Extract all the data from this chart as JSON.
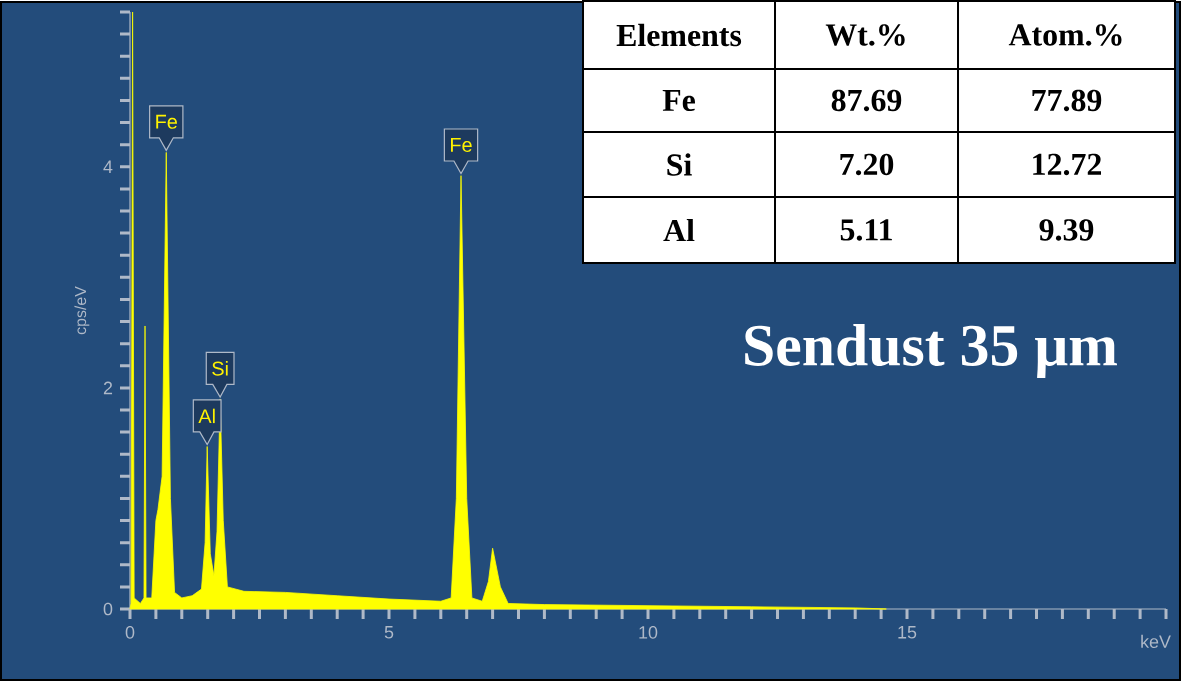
{
  "chart_data": [
    {
      "type": "area",
      "ylabel": "cps/eV",
      "xlabel": "keV",
      "xlim": [
        0,
        20
      ],
      "ylim": [
        0,
        5.4
      ],
      "xticks": [
        0,
        {
          "value": 0.5,
          "label": null
        },
        {
          "value": 1,
          "label": null
        },
        {
          "value": 1.5,
          "label": null
        },
        {
          "value": 2,
          "label": null
        },
        {
          "value": 2.5,
          "label": null
        },
        {
          "value": 3,
          "label": null
        },
        {
          "value": 3.5,
          "label": null
        },
        {
          "value": 4,
          "label": null
        },
        {
          "value": 4.5,
          "label": null
        },
        5,
        {
          "value": 5.5,
          "label": null
        },
        {
          "value": 6,
          "label": null
        },
        {
          "value": 6.5,
          "label": null
        },
        {
          "value": 7,
          "label": null
        },
        {
          "value": 7.5,
          "label": null
        },
        {
          "value": 8,
          "label": null
        },
        {
          "value": 8.5,
          "label": null
        },
        {
          "value": 9,
          "label": null
        },
        {
          "value": 9.5,
          "label": null
        },
        10,
        {
          "value": 10.5,
          "label": null
        },
        {
          "value": 11,
          "label": null
        },
        {
          "value": 11.5,
          "label": null
        },
        {
          "value": 12,
          "label": null
        },
        {
          "value": 12.5,
          "label": null
        },
        {
          "value": 13,
          "label": null
        },
        {
          "value": 13.5,
          "label": null
        },
        {
          "value": 14,
          "label": null
        },
        {
          "value": 14.5,
          "label": null
        },
        15,
        {
          "value": 15.5,
          "label": null
        },
        {
          "value": 16,
          "label": null
        },
        {
          "value": 16.5,
          "label": null
        },
        {
          "value": 17,
          "label": null
        },
        {
          "value": 17.5,
          "label": null
        },
        {
          "value": 18,
          "label": null
        },
        {
          "value": 18.5,
          "label": null
        },
        {
          "value": 19,
          "label": null
        },
        {
          "value": 19.5,
          "label": null
        },
        {
          "value": 20,
          "label": null
        }
      ],
      "yticks": [
        0,
        {
          "value": 0.2,
          "label": null
        },
        {
          "value": 0.4,
          "label": null
        },
        {
          "value": 0.6,
          "label": null
        },
        {
          "value": 0.8,
          "label": null
        },
        {
          "value": 1,
          "label": null
        },
        {
          "value": 1.2,
          "label": null
        },
        {
          "value": 1.4,
          "label": null
        },
        {
          "value": 1.6,
          "label": null
        },
        {
          "value": 1.8,
          "label": null
        },
        2,
        {
          "value": 2.2,
          "label": null
        },
        {
          "value": 2.4,
          "label": null
        },
        {
          "value": 2.6,
          "label": null
        },
        {
          "value": 2.8,
          "label": null
        },
        {
          "value": 3,
          "label": null
        },
        {
          "value": 3.2,
          "label": null
        },
        {
          "value": 3.4,
          "label": null
        },
        {
          "value": 3.6,
          "label": null
        },
        {
          "value": 3.8,
          "label": null
        },
        4,
        {
          "value": 4.2,
          "label": null
        },
        {
          "value": 4.4,
          "label": null
        },
        {
          "value": 4.6,
          "label": null
        },
        {
          "value": 4.8,
          "label": null
        },
        {
          "value": 5,
          "label": null
        },
        {
          "value": 5.2,
          "label": null
        },
        {
          "value": 5.4,
          "label": null
        }
      ],
      "series": [
        {
          "color": "#ffff00",
          "x": [
            0,
            0.02,
            0.05,
            0.08,
            0.2,
            0.27,
            0.29,
            0.31,
            0.42,
            0.5,
            0.54,
            0.62,
            0.7,
            0.78,
            0.86,
            1.0,
            1.2,
            1.38,
            1.45,
            1.49,
            1.55,
            1.62,
            1.68,
            1.74,
            1.8,
            1.88,
            2.2,
            3,
            4,
            5,
            6,
            6.2,
            6.3,
            6.39,
            6.5,
            6.6,
            6.8,
            6.92,
            7.0,
            7.15,
            7.3,
            8,
            10,
            12,
            14,
            14.6
          ],
          "values": [
            0,
            0.05,
            5.4,
            0.1,
            0.05,
            0.1,
            2.56,
            0.1,
            0.1,
            0.8,
            0.9,
            1.2,
            4.13,
            1.0,
            0.15,
            0.1,
            0.12,
            0.18,
            0.6,
            1.47,
            0.5,
            0.3,
            0.7,
            1.9,
            0.8,
            0.2,
            0.16,
            0.15,
            0.12,
            0.09,
            0.07,
            0.1,
            1.0,
            3.92,
            1.0,
            0.1,
            0.07,
            0.25,
            0.55,
            0.2,
            0.05,
            0.04,
            0.03,
            0.02,
            0.01,
            0
          ]
        }
      ],
      "annotations": [
        "Sendust 35 μm",
        {
          "text": "Fe",
          "x": 0.7,
          "y": 4.13
        },
        {
          "text": "Al",
          "x": 1.49,
          "y": 1.47
        },
        {
          "text": "Si",
          "x": 1.74,
          "y": 1.9
        },
        {
          "text": "Fe",
          "x": 6.39,
          "y": 3.92
        }
      ]
    },
    {
      "type": "other",
      "annotations": [
        "Elements",
        "Wt.%",
        "Atom.%",
        "Fe",
        "87.69",
        "77.89",
        "Si",
        "7.20",
        "12.72",
        "Al",
        "5.11",
        "9.39"
      ]
    }
  ]
}
